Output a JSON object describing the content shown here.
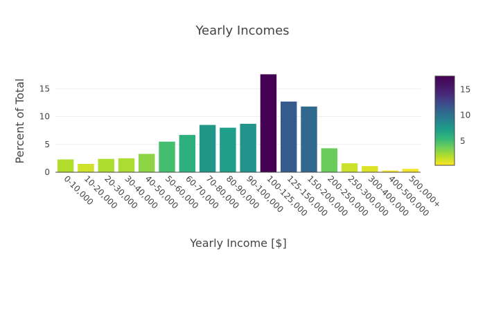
{
  "chart_data": {
    "type": "bar",
    "title": "Yearly Incomes",
    "xlabel": "Yearly Income [$]",
    "ylabel": "Percent of Total",
    "categories": [
      "0-10,000",
      "10-20,000",
      "20-30,000",
      "30-40,000",
      "40-50,000",
      "50-60,000",
      "60-70,000",
      "70-80,000",
      "80-90,000",
      "90-100,000",
      "100-125,000",
      "125-150,000",
      "150-200,000",
      "200-250,000",
      "250-300,000",
      "300-400,000",
      "400-500,000",
      "500,000+"
    ],
    "values": [
      2.3,
      1.5,
      2.4,
      2.5,
      3.3,
      5.5,
      6.7,
      8.5,
      8.0,
      8.7,
      17.6,
      12.7,
      11.8,
      4.3,
      1.6,
      1.1,
      0.3,
      0.6
    ],
    "ylim": [
      0,
      17.9
    ],
    "yticks": [
      0,
      5,
      10,
      15
    ],
    "colorscale": "Viridis (reversed)",
    "colorbar": {
      "range": [
        0.3,
        17.6
      ],
      "ticks": [
        5,
        10,
        15
      ]
    }
  }
}
